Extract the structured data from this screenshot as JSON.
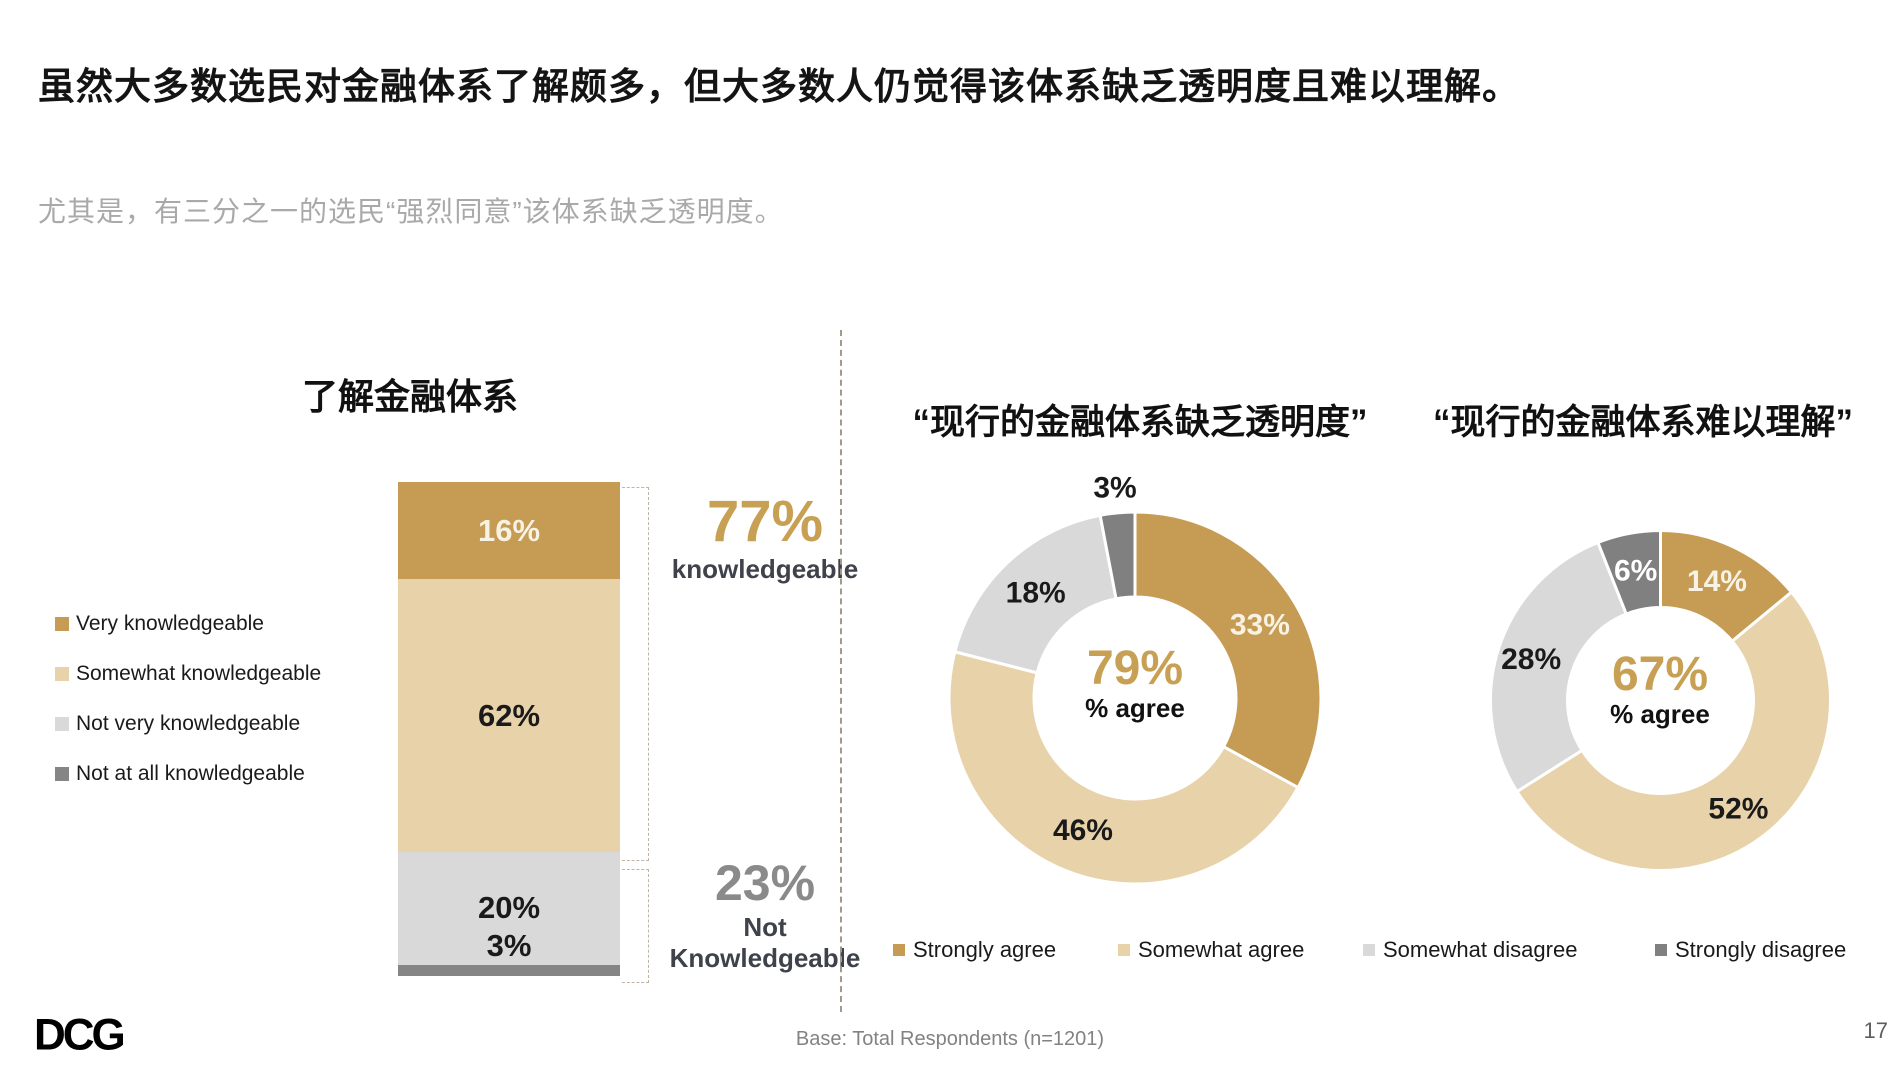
{
  "slide": {
    "title": "虽然大多数选民对金融体系了解颇多，但大多数人仍觉得该体系缺乏透明度且难以理解。",
    "subtitle": "尤其是，有三分之一的选民“强烈同意”该体系缺乏透明度。",
    "footer_note": "Base: Total Respondents (n=1201)",
    "page_number": "17",
    "logo_text": "DCG"
  },
  "colors": {
    "gold": "#C69C54",
    "tan": "#E8D2AA",
    "light_gray": "#D9D9D9",
    "dark_gray": "#808080",
    "gold_text": "#C7A053",
    "dark_text": "#3F424B",
    "gray_text": "#8A8A8A"
  },
  "chart_data": [
    {
      "type": "bar",
      "stacked": true,
      "title": "了解金融体系",
      "categories": [
        "了解金融体系"
      ],
      "ylim": [
        0,
        100
      ],
      "series": [
        {
          "name": "Very knowledgeable",
          "values": [
            16
          ],
          "label": "16%",
          "color": "#C69C54",
          "label_color": "#F7F2E3",
          "label_position": "inside"
        },
        {
          "name": "Somewhat knowledgeable",
          "values": [
            62
          ],
          "label": "62%",
          "color": "#E8D2AA",
          "label_color": "#1A1A1A",
          "label_position": "inside"
        },
        {
          "name": "Not very knowledgeable",
          "values": [
            20
          ],
          "label": "20%",
          "color": "#D9D9D9",
          "label_color": "#1A1A1A",
          "label_position": "inside"
        },
        {
          "name": "Not at all knowledgeable",
          "values": [
            3
          ],
          "label": "3%",
          "color": "#858585",
          "label_color": "#1A1A1A",
          "label_position": "above"
        }
      ],
      "annotations": [
        {
          "value": "77%",
          "label": "knowledgeable"
        },
        {
          "value": "23%",
          "label": "Not Knowledgeable"
        }
      ]
    },
    {
      "type": "pie",
      "subtype": "donut",
      "title": "“现行的金融体系缺乏透明度”",
      "center_value": "79%",
      "center_label": "% agree",
      "slices": [
        {
          "name": "Strongly agree",
          "value": 33,
          "label": "33%",
          "color": "#C69C54",
          "label_color": "#F7F2E3",
          "label_r": 0.78
        },
        {
          "name": "Somewhat agree",
          "value": 46,
          "label": "46%",
          "color": "#E8D2AA",
          "label_color": "#1A1A1A",
          "label_r": 0.76
        },
        {
          "name": "Somewhat disagree",
          "value": 18,
          "label": "18%",
          "color": "#D9D9D9",
          "label_color": "#1A1A1A",
          "label_r": 0.78
        },
        {
          "name": "Strongly disagree",
          "value": 3,
          "label": "3%",
          "color": "#808080",
          "label_color": "#1A1A1A",
          "label_r": 1.14
        }
      ]
    },
    {
      "type": "pie",
      "subtype": "donut",
      "title": "“现行的金融体系难以理解”",
      "center_value": "67%",
      "center_label": "% agree",
      "slices": [
        {
          "name": "Strongly agree",
          "value": 14,
          "label": "14%",
          "color": "#C69C54",
          "label_color": "#F7F2E3",
          "label_r": 0.78
        },
        {
          "name": "Somewhat agree",
          "value": 52,
          "label": "52%",
          "color": "#E8D2AA",
          "label_color": "#1A1A1A",
          "label_r": 0.78
        },
        {
          "name": "Somewhat disagree",
          "value": 28,
          "label": "28%",
          "color": "#D9D9D9",
          "label_color": "#1A1A1A",
          "label_r": 0.8
        },
        {
          "name": "Strongly disagree",
          "value": 6,
          "label": "6%",
          "color": "#808080",
          "label_color": "#FFFFFF",
          "label_r": 0.78
        }
      ]
    }
  ]
}
